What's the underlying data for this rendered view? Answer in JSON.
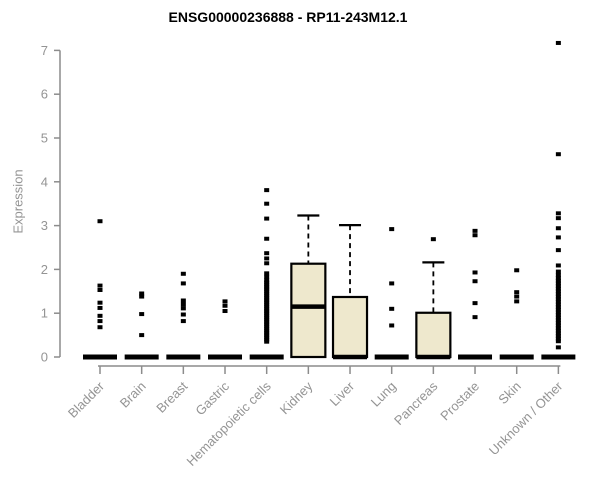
{
  "title": "ENSG00000236888 - RP11-243M12.1",
  "chart_data": {
    "type": "boxplot",
    "title": "ENSG00000236888 - RP11-243M12.1",
    "xlabel": "",
    "ylabel": "Expression",
    "ylim": [
      0,
      7
    ],
    "yticks": [
      0,
      1,
      2,
      3,
      4,
      5,
      6,
      7
    ],
    "grid": false,
    "legend": "none",
    "categories": [
      "Bladder",
      "Brain",
      "Breast",
      "Gastric",
      "Hematopoietic cells",
      "Kidney",
      "Liver",
      "Lung",
      "Pancreas",
      "Prostate",
      "Skin",
      "Unknown / Other"
    ],
    "groups": [
      {
        "name": "Bladder",
        "q1": 0,
        "median": 0,
        "q3": 0,
        "whisker_low": 0,
        "whisker_high": 0,
        "outliers": [
          3.1,
          1.63,
          1.53,
          1.24,
          1.12,
          0.94,
          0.82,
          0.68
        ]
      },
      {
        "name": "Brain",
        "q1": 0,
        "median": 0,
        "q3": 0,
        "whisker_low": 0,
        "whisker_high": 0,
        "outliers": [
          1.45,
          1.38,
          0.98,
          0.5
        ]
      },
      {
        "name": "Breast",
        "q1": 0,
        "median": 0,
        "q3": 0,
        "whisker_low": 0,
        "whisker_high": 0,
        "outliers": [
          1.9,
          1.68,
          1.29,
          1.2,
          1.11,
          0.97,
          0.82
        ]
      },
      {
        "name": "Gastric",
        "q1": 0,
        "median": 0,
        "q3": 0,
        "whisker_low": 0,
        "whisker_high": 0,
        "outliers": [
          1.27,
          1.17,
          1.05
        ]
      },
      {
        "name": "Hematopoietic cells",
        "q1": 0,
        "median": 0,
        "q3": 0,
        "whisker_low": 0,
        "whisker_high": 0,
        "outliers": [
          3.81,
          3.5,
          3.16,
          2.7,
          2.37,
          2.25,
          2.14,
          1.91,
          1.83,
          1.75,
          1.7,
          1.65,
          1.6,
          1.55,
          1.5,
          1.45,
          1.4,
          1.35,
          1.3,
          1.25,
          1.2,
          1.15,
          1.1,
          1.05,
          1.0,
          0.95,
          0.9,
          0.85,
          0.8,
          0.75,
          0.7,
          0.65,
          0.6,
          0.55,
          0.5,
          0.45,
          0.4,
          0.35
        ]
      },
      {
        "name": "Kidney",
        "q1": 0,
        "median": 1.15,
        "q3": 2.13,
        "whisker_low": 0,
        "whisker_high": 3.23,
        "outliers": []
      },
      {
        "name": "Liver",
        "q1": 0,
        "median": 0,
        "q3": 1.37,
        "whisker_low": 0,
        "whisker_high": 3.01,
        "outliers": []
      },
      {
        "name": "Lung",
        "q1": 0,
        "median": 0,
        "q3": 0,
        "whisker_low": 0,
        "whisker_high": 0,
        "outliers": [
          2.92,
          1.68,
          1.1,
          0.72
        ]
      },
      {
        "name": "Pancreas",
        "q1": 0,
        "median": 0,
        "q3": 1.01,
        "whisker_low": 0,
        "whisker_high": 2.16,
        "outliers": [
          2.69
        ]
      },
      {
        "name": "Prostate",
        "q1": 0,
        "median": 0,
        "q3": 0,
        "whisker_low": 0,
        "whisker_high": 0,
        "outliers": [
          2.88,
          2.78,
          1.93,
          1.73,
          1.23,
          0.91
        ]
      },
      {
        "name": "Skin",
        "q1": 0,
        "median": 0,
        "q3": 0,
        "whisker_low": 0,
        "whisker_high": 0,
        "outliers": [
          1.98,
          1.48,
          1.38,
          1.27
        ]
      },
      {
        "name": "Unknown / Other",
        "q1": 0,
        "median": 0,
        "q3": 0,
        "whisker_low": 0,
        "whisker_high": 0,
        "outliers": [
          7.17,
          4.63,
          3.28,
          3.17,
          2.94,
          2.73,
          2.44,
          2.09,
          1.95,
          1.87,
          1.8,
          1.74,
          1.68,
          1.62,
          1.56,
          1.5,
          1.44,
          1.38,
          1.32,
          1.26,
          1.2,
          1.14,
          1.08,
          1.02,
          0.96,
          0.9,
          0.84,
          0.78,
          0.72,
          0.66,
          0.6,
          0.54,
          0.48,
          0.42,
          0.36,
          0.22
        ]
      }
    ],
    "colors": {
      "box_fill": "#eee8cd",
      "box_border": "#000000",
      "median": "#000000",
      "whisker": "#000000",
      "outlier": "#000000",
      "axis_line": "#8c8c8c",
      "tick_label": "#949494",
      "title": "#000000"
    }
  }
}
